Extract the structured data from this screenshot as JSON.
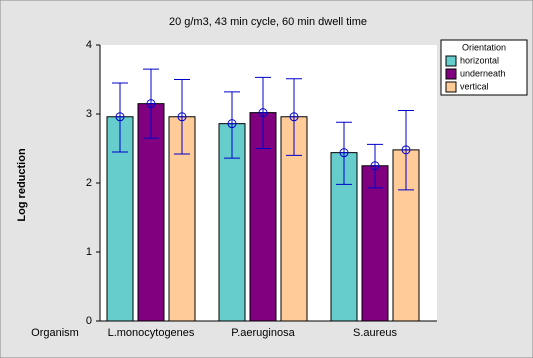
{
  "chart_data": {
    "type": "bar",
    "title": "20 g/m3, 43 min cycle, 60 min dwell time",
    "x_label": "Organism",
    "y_label": "Log reduction",
    "categories": [
      "L.monocytogenes",
      "P.aeruginosa",
      "S.aureus"
    ],
    "legend_title": "Orientation",
    "legend_position": "right",
    "series": [
      {
        "name": "horizontal",
        "color": "#66cccc",
        "values": [
          2.96,
          2.86,
          2.44
        ],
        "lower": [
          2.45,
          2.36,
          1.98
        ],
        "upper": [
          3.45,
          3.32,
          2.88
        ]
      },
      {
        "name": "underneath",
        "color": "#800080",
        "values": [
          3.15,
          3.02,
          2.25
        ],
        "lower": [
          2.65,
          2.5,
          1.93
        ],
        "upper": [
          3.65,
          3.53,
          2.56
        ]
      },
      {
        "name": "vertical",
        "color": "#ffcc99",
        "values": [
          2.96,
          2.96,
          2.48
        ],
        "lower": [
          2.42,
          2.4,
          1.9
        ],
        "upper": [
          3.5,
          3.51,
          3.05
        ]
      }
    ],
    "error_color": "#0000cc",
    "ylim": [
      0,
      4
    ],
    "yticks": [
      0,
      1,
      2,
      3,
      4
    ],
    "grid": false
  }
}
